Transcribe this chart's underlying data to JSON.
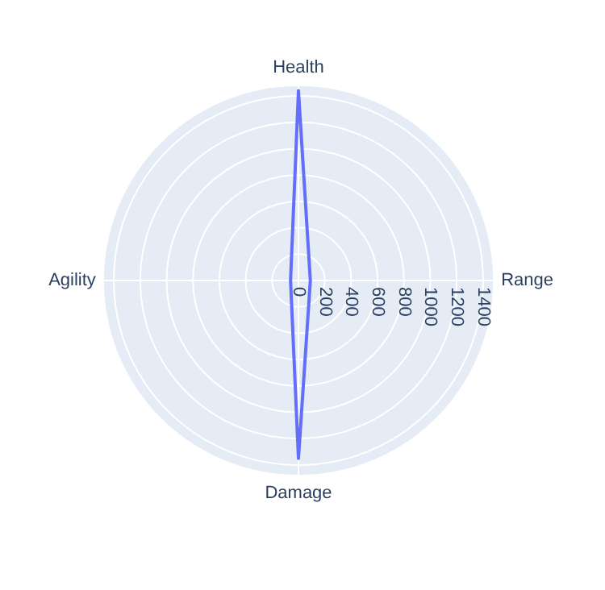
{
  "chart_data": {
    "type": "radar",
    "categories": [
      "Health",
      "Range",
      "Damage",
      "Agility"
    ],
    "series": [
      {
        "color": "#636efa",
        "values": [
          1440,
          90,
          1350,
          60
        ]
      }
    ],
    "ylim": [
      0,
      1475
    ],
    "yticks": [
      0,
      200,
      400,
      600,
      800,
      1000,
      1200,
      1400
    ],
    "grid": true,
    "legend": false,
    "marker": "none"
  }
}
